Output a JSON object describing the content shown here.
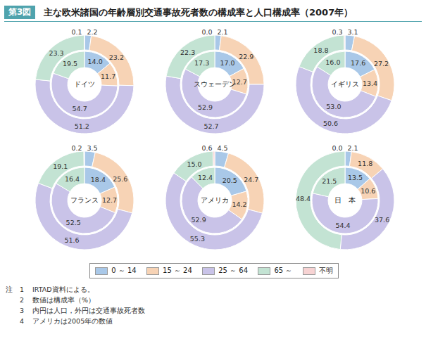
{
  "figure_label": "第3図",
  "title": "主な欧米諸国の年齢層別交通事故死者数の構成率と人口構成率（2007年）",
  "legend": "bottom",
  "notes_label": "注",
  "notes": [
    {
      "number": "1",
      "text": "IRTAD資料による。"
    },
    {
      "number": "2",
      "text": "数値は構成率（%）"
    },
    {
      "number": "3",
      "text": "内円は人口，外円は交通事故死者数"
    },
    {
      "number": "4",
      "text": "アメリカは2005年の数値"
    }
  ],
  "chart_data": [
    {
      "type": "pie",
      "title": "ドイツ",
      "categories": [
        "0 ～ 14",
        "15 ～ 24",
        "25 ～ 64",
        "65 ～",
        "不明"
      ],
      "colors": [
        "#a9c8e8",
        "#f7d3b5",
        "#c9c3e8",
        "#c3e3d3",
        "#f7d3d3"
      ],
      "data_labels": true,
      "series": [
        {
          "values": [
            14.0,
            11.7,
            54.7,
            19.5,
            null
          ],
          "value_labels": [
            "14.0",
            "11.7",
            "54.7",
            "19.5",
            null
          ]
        },
        {
          "values": [
            2.2,
            23.2,
            51.2,
            23.3,
            0.1
          ],
          "value_labels": [
            "2.2",
            "23.2",
            "51.2",
            "23.3",
            "0.1"
          ]
        }
      ]
    },
    {
      "type": "pie",
      "title": "スウェーデン",
      "categories": [
        "0 ～ 14",
        "15 ～ 24",
        "25 ～ 64",
        "65 ～",
        "不明"
      ],
      "colors": [
        "#a9c8e8",
        "#f7d3b5",
        "#c9c3e8",
        "#c3e3d3",
        "#f7d3d3"
      ],
      "data_labels": true,
      "series": [
        {
          "values": [
            17.0,
            12.7,
            52.9,
            17.3,
            null
          ],
          "value_labels": [
            "17.0",
            "12.7",
            "52.9",
            "17.3",
            null
          ]
        },
        {
          "values": [
            2.1,
            22.9,
            52.7,
            22.3,
            0.0
          ],
          "value_labels": [
            "2.1",
            "22.9",
            "52.7",
            "22.3",
            "0.0"
          ]
        }
      ]
    },
    {
      "type": "pie",
      "title": "イギリス",
      "categories": [
        "0 ～ 14",
        "15 ～ 24",
        "25 ～ 64",
        "65 ～",
        "不明"
      ],
      "colors": [
        "#a9c8e8",
        "#f7d3b5",
        "#c9c3e8",
        "#c3e3d3",
        "#f7d3d3"
      ],
      "data_labels": true,
      "series": [
        {
          "values": [
            17.6,
            13.4,
            53.0,
            16.0,
            null
          ],
          "value_labels": [
            "17.6",
            "13.4",
            "53.0",
            "16.0",
            null
          ]
        },
        {
          "values": [
            3.1,
            27.2,
            50.6,
            18.8,
            0.3
          ],
          "value_labels": [
            "3.1",
            "27.2",
            "50.6",
            "18.8",
            "0.3"
          ]
        }
      ]
    },
    {
      "type": "pie",
      "title": "フランス",
      "categories": [
        "0 ～ 14",
        "15 ～ 24",
        "25 ～ 64",
        "65 ～",
        "不明"
      ],
      "colors": [
        "#a9c8e8",
        "#f7d3b5",
        "#c9c3e8",
        "#c3e3d3",
        "#f7d3d3"
      ],
      "data_labels": true,
      "series": [
        {
          "values": [
            18.4,
            12.7,
            52.5,
            16.4,
            null
          ],
          "value_labels": [
            "18.4",
            "12.7",
            "52.5",
            "16.4",
            null
          ]
        },
        {
          "values": [
            3.5,
            25.6,
            51.6,
            19.1,
            0.2
          ],
          "value_labels": [
            "3.5",
            "25.6",
            "51.6",
            "19.1",
            "0.2"
          ]
        }
      ]
    },
    {
      "type": "pie",
      "title": "アメリカ",
      "categories": [
        "0 ～ 14",
        "15 ～ 24",
        "25 ～ 64",
        "65 ～",
        "不明"
      ],
      "colors": [
        "#a9c8e8",
        "#f7d3b5",
        "#c9c3e8",
        "#c3e3d3",
        "#f7d3d3"
      ],
      "data_labels": true,
      "series": [
        {
          "values": [
            20.5,
            14.2,
            52.9,
            12.4,
            null
          ],
          "value_labels": [
            "20.5",
            "14.2",
            "52.9",
            "12.4",
            null
          ]
        },
        {
          "values": [
            4.5,
            24.7,
            55.3,
            15.0,
            0.6
          ],
          "value_labels": [
            "4.5",
            "24.7",
            "55.3",
            "15.0",
            "0.6"
          ]
        }
      ]
    },
    {
      "type": "pie",
      "title": "日　本",
      "categories": [
        "0 ～ 14",
        "15 ～ 24",
        "25 ～ 64",
        "65 ～",
        "不明"
      ],
      "colors": [
        "#a9c8e8",
        "#f7d3b5",
        "#c9c3e8",
        "#c3e3d3",
        "#f7d3d3"
      ],
      "data_labels": true,
      "series": [
        {
          "values": [
            13.5,
            10.6,
            54.4,
            21.5,
            null
          ],
          "value_labels": [
            "13.5",
            "10.6",
            "54.4",
            "21.5",
            null
          ]
        },
        {
          "values": [
            2.1,
            11.8,
            37.6,
            48.4,
            0.0
          ],
          "value_labels": [
            "2.1",
            "11.8",
            "37.6",
            "48.4",
            "0.0"
          ]
        }
      ]
    }
  ]
}
